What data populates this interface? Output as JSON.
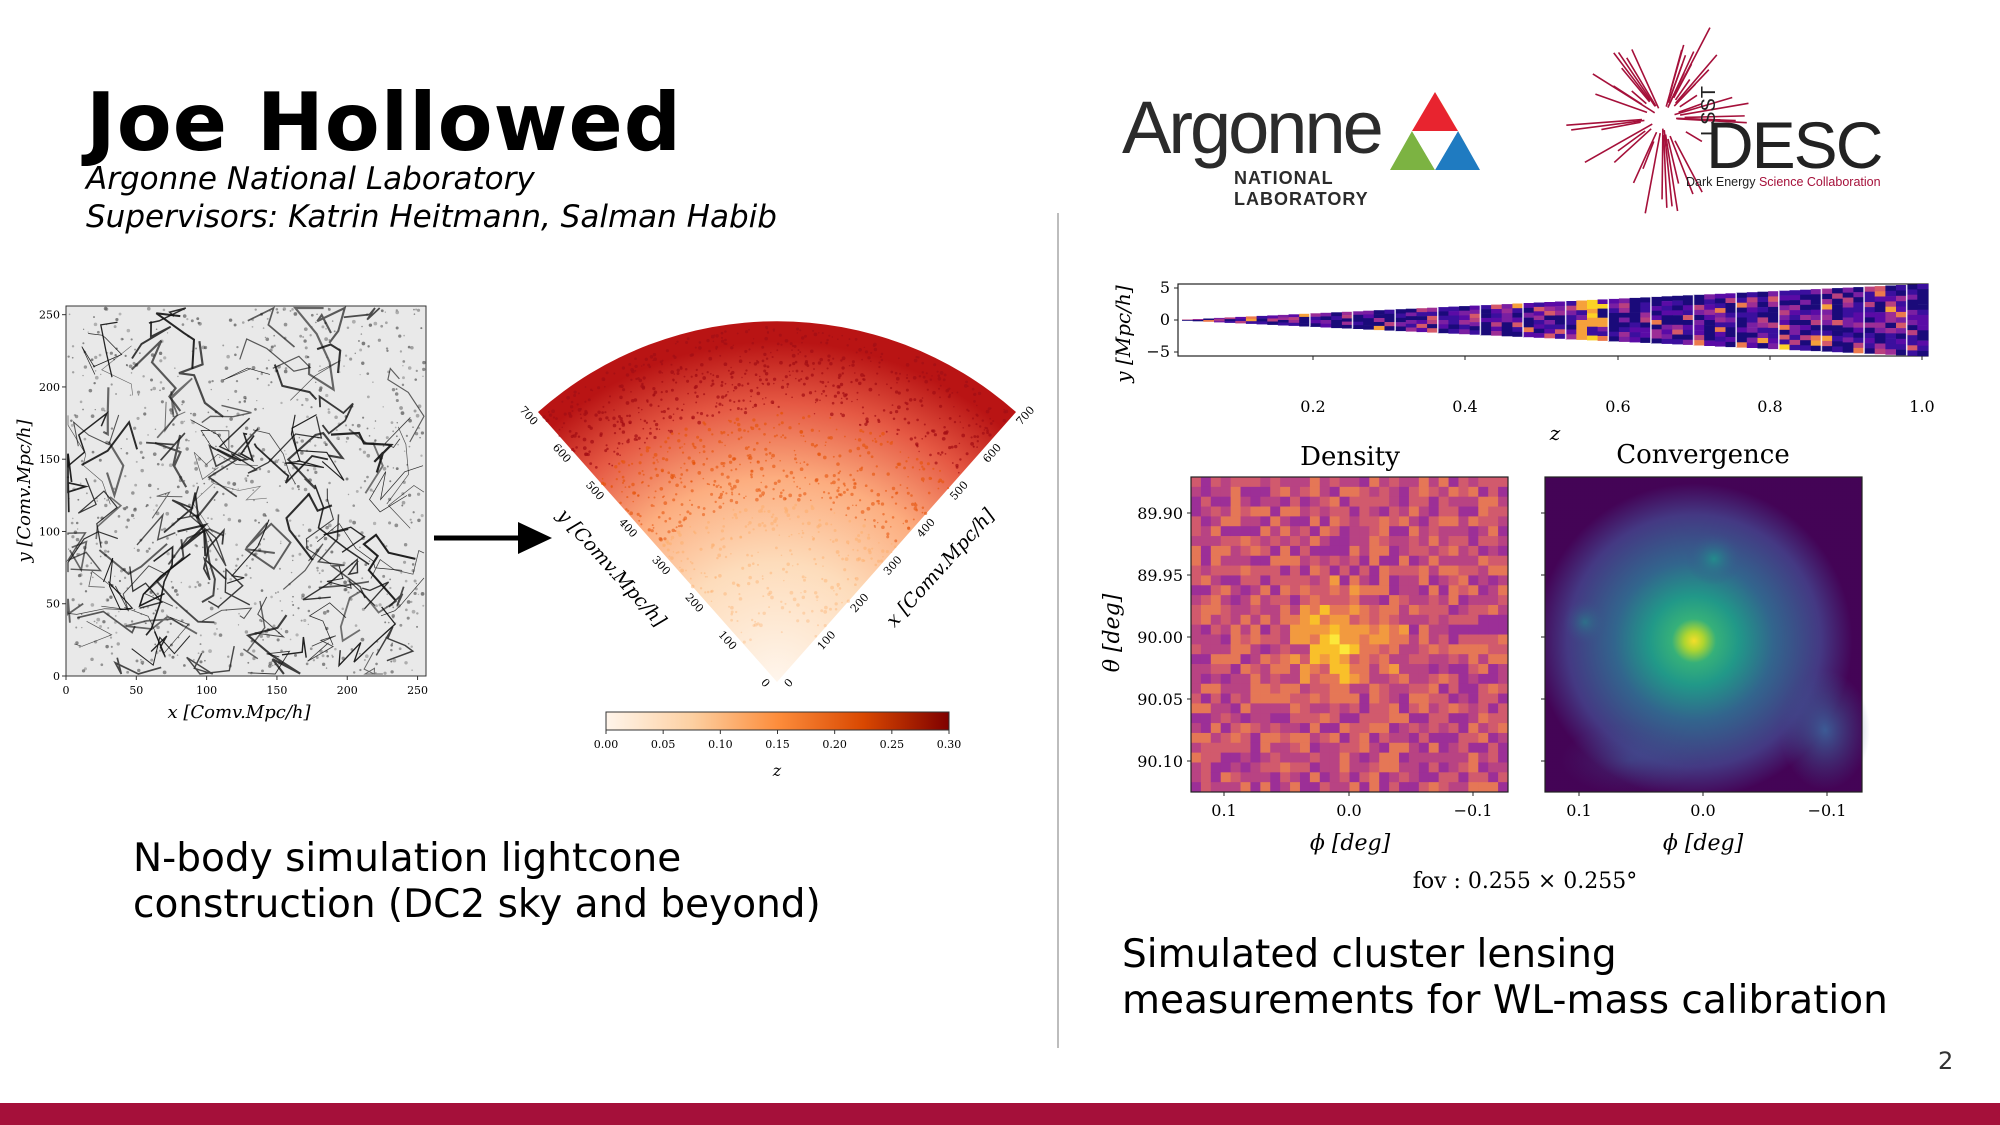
{
  "header": {
    "name": "Joe Hollowed",
    "affiliation": "Argonne National Laboratory",
    "supervisors": "Supervisors: Katrin Heitmann, Salman Habib"
  },
  "logos": {
    "argonne_wordmark": "Argonne",
    "argonne_subtitle": "NATIONAL LABORATORY",
    "desc_prefix": "LSST",
    "desc_wordmark": "DESC",
    "desc_subtitle_a": "Dark Energy ",
    "desc_subtitle_b": "Science Collaboration"
  },
  "left_panel": {
    "caption_line1": "N-body simulation lightcone",
    "caption_line2": "construction (DC2 sky and beyond)",
    "box_plot": {
      "xlabel": "x [Comv.Mpc/h]",
      "ylabel": "y [Comv.Mpc/h]",
      "x_ticks": [
        "0",
        "50",
        "100",
        "150",
        "200",
        "250"
      ],
      "y_ticks": [
        "0",
        "50",
        "100",
        "150",
        "200",
        "250"
      ]
    },
    "cone_plot": {
      "left_axis_label": "y [Comv.Mpc/h]",
      "right_axis_label": "x [Comv.Mpc/h]",
      "ticks": [
        "0",
        "100",
        "200",
        "300",
        "400",
        "500",
        "600",
        "700"
      ],
      "colorbar_label": "z",
      "colorbar_ticks": [
        "0.00",
        "0.05",
        "0.10",
        "0.15",
        "0.20",
        "0.25",
        "0.30"
      ],
      "colors": [
        "#fff5eb",
        "#fdd0a2",
        "#fd8d3c",
        "#d94801",
        "#8c0a0a"
      ]
    }
  },
  "right_panel": {
    "caption_line1": "Simulated cluster lensing",
    "caption_line2": "measurements for WL-mass calibration",
    "strip_plot": {
      "ylabel": "y [Mpc/h]",
      "xlabel": "z",
      "y_ticks": [
        "5",
        "0",
        "−5"
      ],
      "x_ticks": [
        "0.2",
        "0.4",
        "0.6",
        "0.8",
        "1.0"
      ]
    },
    "density_map": {
      "title": "Density",
      "ylabel": "θ [deg]",
      "xlabel": "ϕ [deg]",
      "y_ticks": [
        "89.90",
        "89.95",
        "90.00",
        "90.05",
        "90.10"
      ],
      "x_ticks": [
        "0.1",
        "0.0",
        "−0.1"
      ]
    },
    "convergence_map": {
      "title": "Convergence",
      "xlabel": "ϕ [deg]",
      "x_ticks": [
        "0.1",
        "0.0",
        "−0.1"
      ]
    },
    "fov": "fov : 0.255 × 0.255°"
  },
  "footer": {
    "page_number": "2",
    "bar_color": "#a5103a"
  }
}
